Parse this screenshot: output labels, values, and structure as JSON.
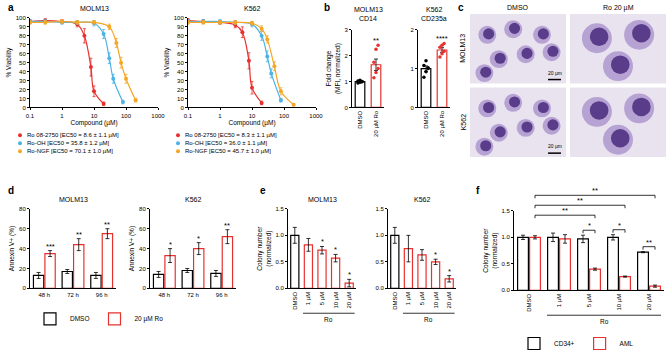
{
  "chart_data": [
    {
      "panel": "a",
      "type": "line",
      "title": "MOLM13",
      "x_label": "Compound (µM)",
      "y_label": "% Viability",
      "log": "x",
      "xlim": [
        0.1,
        1000
      ],
      "xticks": [
        0.1,
        1,
        10,
        100,
        1000
      ],
      "ylim": [
        0,
        100
      ],
      "yticks": [
        0,
        10,
        20,
        30,
        40,
        50,
        60,
        70,
        80,
        90,
        100
      ],
      "legend": "below",
      "series": [
        {
          "name": "Ro 08-2750 [EC50 = 8.6 ± 1.1 µM]",
          "color": "#e8312f",
          "x": [
            0.1,
            0.3,
            1,
            3,
            5,
            8,
            10,
            20
          ],
          "values": [
            96,
            97,
            96,
            93,
            80,
            45,
            18,
            4
          ],
          "errors": [
            2,
            2,
            2,
            3,
            8,
            10,
            6,
            2
          ]
        },
        {
          "name": "Ro-OH [EC50 = 35.8 ± 1.2 µM]",
          "color": "#4db3e6",
          "x": [
            0.1,
            0.3,
            1,
            3,
            10,
            20,
            30,
            40,
            80
          ],
          "values": [
            96,
            96,
            95,
            95,
            94,
            82,
            55,
            32,
            6
          ],
          "errors": [
            2,
            2,
            2,
            2,
            3,
            5,
            6,
            5,
            2
          ]
        },
        {
          "name": "Ro-NGF [EC50 = 70.1 ± 1.0 µM]",
          "color": "#f5a623",
          "x": [
            0.1,
            0.3,
            1,
            3,
            10,
            30,
            50,
            70,
            100,
            200
          ],
          "values": [
            95,
            95,
            96,
            95,
            95,
            90,
            72,
            50,
            32,
            8
          ],
          "errors": [
            2,
            2,
            2,
            2,
            2,
            3,
            5,
            6,
            5,
            2
          ]
        }
      ]
    },
    {
      "type": "line",
      "title": "K562",
      "x_label": "Compound (µM)",
      "y_label": "% Viability",
      "log": "x",
      "xlim": [
        0.1,
        1000
      ],
      "xticks": [
        0.1,
        1,
        10,
        100,
        1000
      ],
      "ylim": [
        0,
        100
      ],
      "yticks": [
        0,
        10,
        20,
        30,
        40,
        50,
        60,
        70,
        80,
        90,
        100
      ],
      "legend": "below",
      "series": [
        {
          "name": "Ro 08-2750 [EC50 = 8.3 ± 1.1 µM]",
          "color": "#e8312f",
          "x": [
            0.1,
            0.3,
            1,
            3,
            5,
            8,
            10,
            20
          ],
          "values": [
            97,
            96,
            95,
            92,
            84,
            52,
            22,
            5
          ],
          "errors": [
            2,
            2,
            2,
            3,
            6,
            9,
            7,
            2
          ]
        },
        {
          "name": "Ro-OH [EC50 = 36.0 ± 1.1 µM]",
          "color": "#4db3e6",
          "x": [
            0.1,
            0.3,
            1,
            3,
            10,
            20,
            30,
            40,
            80
          ],
          "values": [
            96,
            96,
            96,
            95,
            93,
            80,
            57,
            38,
            8
          ],
          "errors": [
            2,
            2,
            2,
            2,
            3,
            5,
            6,
            5,
            2
          ]
        },
        {
          "name": "Ro-NGF [EC50 = 45.7 ± 1.0 µM]",
          "color": "#f5a623",
          "x": [
            0.1,
            0.3,
            1,
            3,
            10,
            20,
            30,
            50,
            80,
            200
          ],
          "values": [
            95,
            95,
            95,
            95,
            94,
            88,
            76,
            46,
            18,
            3
          ],
          "errors": [
            2,
            2,
            2,
            2,
            2,
            3,
            4,
            5,
            4,
            1
          ]
        }
      ]
    },
    {
      "panel": "b",
      "type": "bar",
      "title": "MOLM13",
      "subtitle": "CD14",
      "y_label": "Fold change (MFI, normalized)",
      "categories": [
        "DMSO",
        "20 µM Ro"
      ],
      "values": [
        1.0,
        1.65
      ],
      "errors": [
        0.04,
        0.22
      ],
      "points": [
        [
          0.94,
          0.97,
          1.0,
          1.02,
          1.05,
          0.99
        ],
        [
          1.15,
          1.35,
          1.5,
          1.75,
          2.25,
          2.4
        ]
      ],
      "colors": [
        "#000000",
        "#e8312f"
      ],
      "significance": [
        null,
        "**"
      ],
      "ylim": [
        0,
        3
      ],
      "yticks": [
        0,
        1,
        2,
        3
      ]
    },
    {
      "type": "bar",
      "title": "K562",
      "subtitle": "CD235a",
      "categories": [
        "DMSO",
        "20 µM Ro"
      ],
      "values": [
        1.0,
        1.48
      ],
      "errors": [
        0.07,
        0.06
      ],
      "points": [
        [
          0.78,
          0.92,
          1.0,
          1.08,
          1.2,
          1.02
        ],
        [
          1.3,
          1.38,
          1.45,
          1.55,
          1.6,
          1.65
        ]
      ],
      "colors": [
        "#000000",
        "#e8312f"
      ],
      "significance": [
        null,
        "****"
      ],
      "ylim": [
        0,
        2
      ],
      "yticks": [
        0,
        1,
        2
      ]
    },
    {
      "panel": "d",
      "type": "bar",
      "title": "MOLM13",
      "y_label": "Annexin V+ (%)",
      "categories": [
        "48 h",
        "72 h",
        "96 h"
      ],
      "series": [
        {
          "name": "DMSO",
          "color": "#000000",
          "values": [
            13,
            17,
            13
          ],
          "errors": [
            3,
            2,
            3
          ]
        },
        {
          "name": "20 µM Ro",
          "color": "#e8312f",
          "values": [
            35,
            44,
            55
          ],
          "errors": [
            3,
            6,
            5
          ],
          "significance": [
            "***",
            "**",
            "**"
          ]
        }
      ],
      "legend": "below",
      "ylim": [
        0,
        80
      ],
      "yticks": [
        0,
        20,
        40,
        60,
        80
      ]
    },
    {
      "type": "bar",
      "title": "K562",
      "y_label": "Annexin V+ (%)",
      "categories": [
        "48 h",
        "72 h",
        "96 h"
      ],
      "series": [
        {
          "name": "DMSO",
          "color": "#000000",
          "values": [
            14,
            18,
            15
          ],
          "errors": [
            3,
            2,
            3
          ]
        },
        {
          "name": "20 µM Ro",
          "color": "#e8312f",
          "values": [
            33,
            40,
            52
          ],
          "errors": [
            7,
            6,
            7
          ],
          "significance": [
            "*",
            "*",
            "**"
          ]
        }
      ],
      "ylim": [
        0,
        80
      ],
      "yticks": [
        0,
        20,
        40,
        60,
        80
      ]
    },
    {
      "panel": "e",
      "type": "bar",
      "title": "MOLM13",
      "y_label": "Colony number (normalized)",
      "categories": [
        "DMSO",
        "1 µM",
        "5 µM",
        "10 µM",
        "20 µM"
      ],
      "group_label": "Ro",
      "values": [
        1.0,
        0.82,
        0.72,
        0.57,
        0.1
      ],
      "errors": [
        0.15,
        0.12,
        0.07,
        0.07,
        0.07
      ],
      "colors": [
        "#000000",
        "#e8312f",
        "#e8312f",
        "#e8312f",
        "#e8312f"
      ],
      "significance": [
        null,
        null,
        "*",
        "*",
        "*"
      ],
      "ylim": [
        0,
        1.5
      ],
      "yticks": [
        {
          "value": 0,
          "label": "0.0"
        },
        0.5,
        {
          "value": 1,
          "label": "1.0"
        },
        1.5
      ]
    },
    {
      "type": "bar",
      "title": "K562",
      "categories": [
        "DMSO",
        "1 µM",
        "5 µM",
        "10 µM",
        "20 µM"
      ],
      "group_label": "Ro",
      "values": [
        1.0,
        0.75,
        0.63,
        0.5,
        0.18
      ],
      "errors": [
        0.15,
        0.25,
        0.1,
        0.05,
        0.06
      ],
      "colors": [
        "#000000",
        "#e8312f",
        "#e8312f",
        "#e8312f",
        "#e8312f"
      ],
      "significance": [
        null,
        null,
        null,
        "*",
        "*"
      ],
      "ylim": [
        0,
        1.5
      ],
      "yticks": [
        {
          "value": 0,
          "label": "0.0"
        },
        0.5,
        {
          "value": 1,
          "label": "1.0"
        },
        1.5
      ]
    },
    {
      "panel": "f",
      "type": "bar",
      "y_label": "Colony number (normalized)",
      "categories": [
        "DMSO",
        "1 µM",
        "5 µM",
        "10 µM",
        "20 µM"
      ],
      "group_label": "Ro",
      "series": [
        {
          "name": "CD34+",
          "color": "#000000",
          "values": [
            1.0,
            1.0,
            0.97,
            1.0,
            0.72
          ],
          "errors": [
            0.04,
            0.08,
            0.07,
            0.05,
            0.01
          ]
        },
        {
          "name": "AML",
          "color": "#e8312f",
          "values": [
            1.0,
            0.97,
            0.4,
            0.26,
            0.08
          ],
          "errors": [
            0.03,
            0.08,
            0.02,
            0.01,
            0.02
          ]
        }
      ],
      "pair_significance": [
        null,
        null,
        "*",
        "*",
        "**"
      ],
      "comparisons": [
        {
          "from": "DMSO",
          "to": "5 µM",
          "label": "**"
        },
        {
          "from": "DMSO",
          "to": "10 µM",
          "label": "**"
        },
        {
          "from": "DMSO",
          "to": "20 µM",
          "label": "**"
        }
      ],
      "legend": "below",
      "ylim": [
        0,
        1.5
      ],
      "yticks": [
        {
          "value": 0,
          "label": "0.0"
        },
        0.5,
        {
          "value": 1,
          "label": "1.0"
        },
        1.5
      ]
    }
  ],
  "micrographs": {
    "panel": "c",
    "columns": [
      "DMSO",
      "Ro 20 µM"
    ],
    "rows": [
      "MOLM13",
      "K562"
    ],
    "scale_bar": "20 µm"
  }
}
